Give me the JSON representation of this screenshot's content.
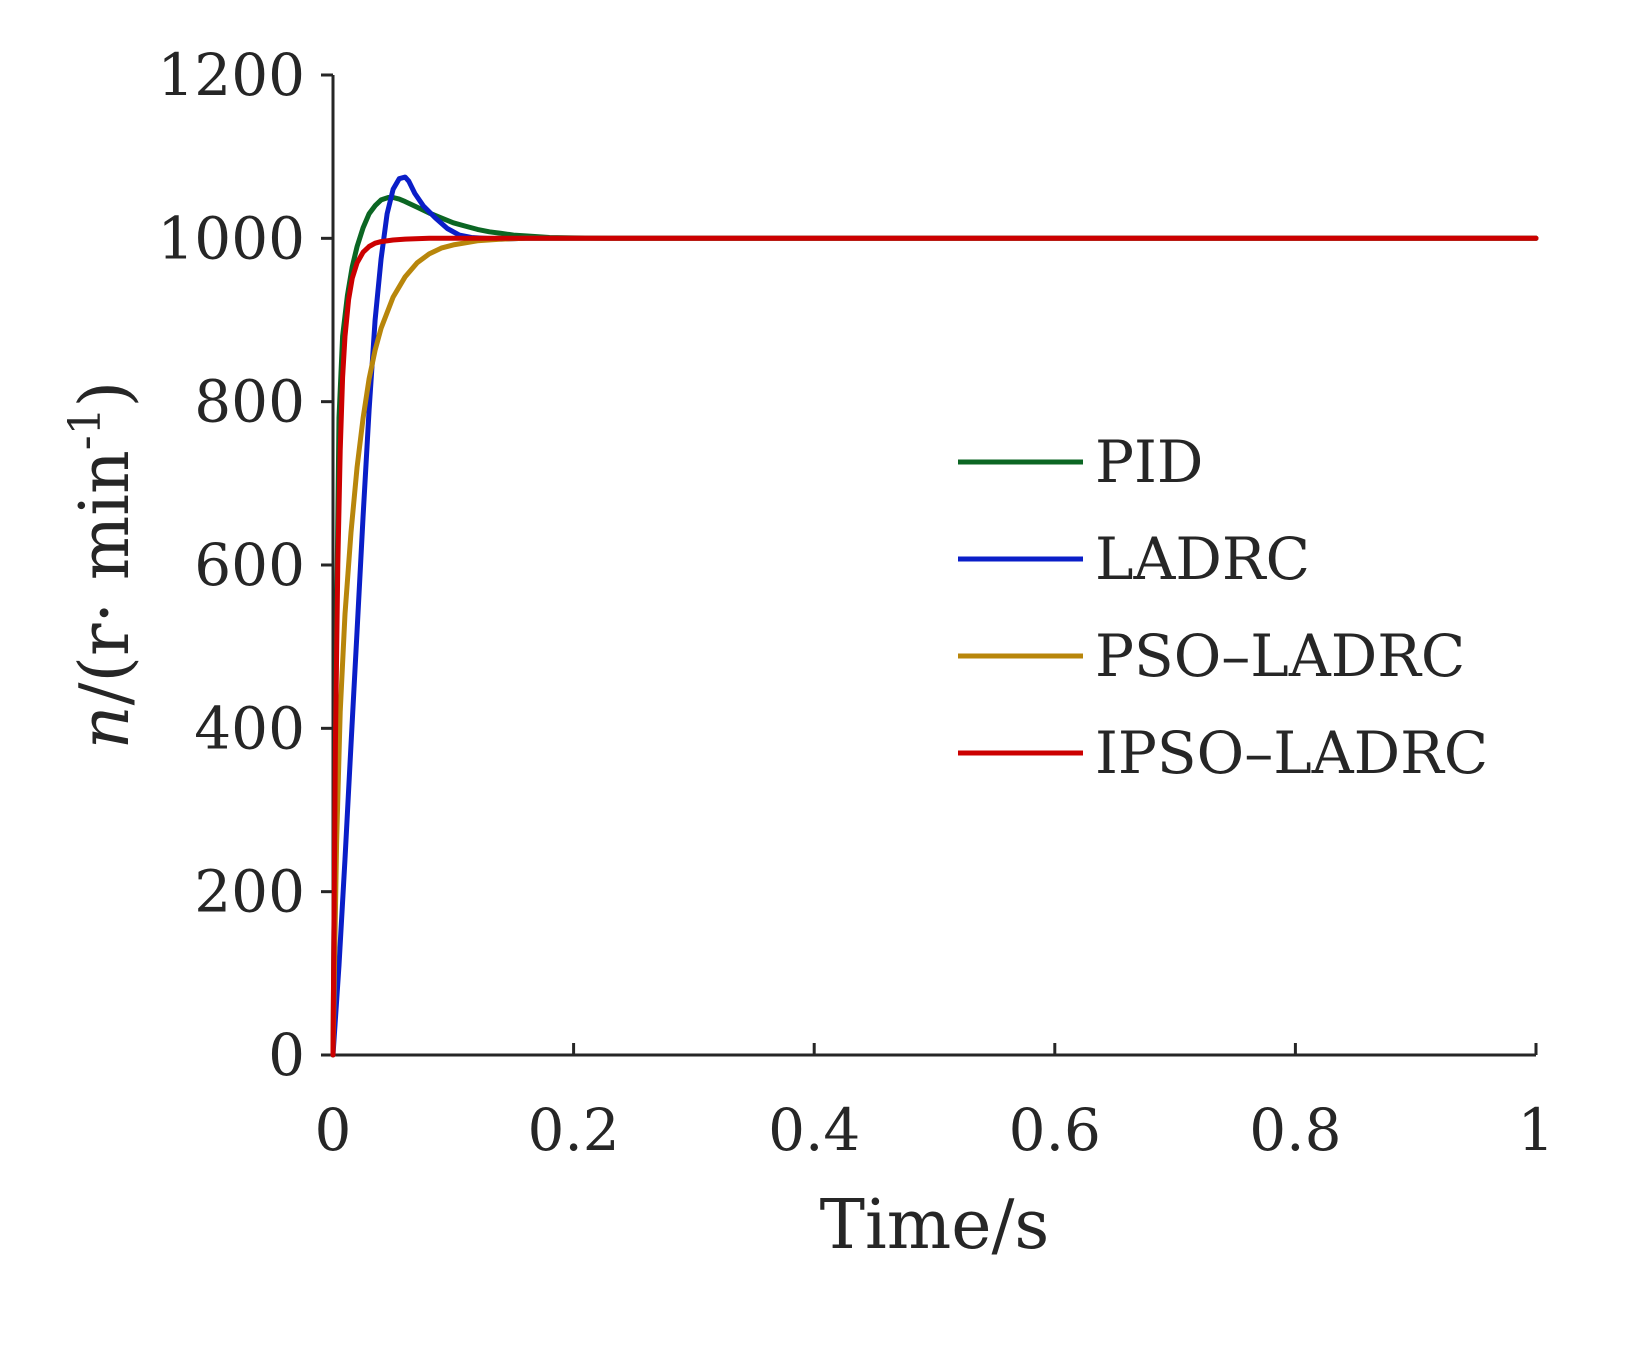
{
  "chart_data": {
    "type": "line",
    "title": "",
    "xlabel": "Time/s",
    "ylabel": {
      "n": "n",
      "rest": "/(r· min",
      "sup": "-1",
      "close": ")"
    },
    "xlim": [
      0,
      1
    ],
    "ylim": [
      0,
      1200
    ],
    "xticks": [
      0,
      0.2,
      0.4,
      0.6,
      0.8,
      1
    ],
    "xtick_labels": [
      "0",
      "0.2",
      "0.4",
      "0.6",
      "0.8",
      "1"
    ],
    "yticks": [
      0,
      200,
      400,
      600,
      800,
      1000,
      1200
    ],
    "ytick_labels": [
      "0",
      "200",
      "400",
      "600",
      "800",
      "1000",
      "1200"
    ],
    "grid": false,
    "legend_position": "right-middle",
    "series": [
      {
        "name": "PID",
        "color": "#0b6623",
        "x": [
          0,
          0.002,
          0.005,
          0.008,
          0.012,
          0.016,
          0.02,
          0.025,
          0.03,
          0.035,
          0.04,
          0.046,
          0.05,
          0.055,
          0.06,
          0.07,
          0.08,
          0.09,
          0.1,
          0.11,
          0.12,
          0.13,
          0.14,
          0.15,
          0.16,
          0.18,
          0.2,
          0.23,
          0.26,
          0.3,
          1.0
        ],
        "y": [
          0,
          400,
          780,
          880,
          930,
          965,
          990,
          1013,
          1030,
          1040,
          1047,
          1050,
          1050,
          1048,
          1045,
          1038,
          1031,
          1025,
          1019,
          1015,
          1011,
          1008,
          1006,
          1004,
          1003,
          1001,
          1000.5,
          1000.2,
          1000,
          1000,
          1000
        ]
      },
      {
        "name": "LADRC",
        "color": "#0a1ec8",
        "x": [
          0,
          0.005,
          0.01,
          0.015,
          0.02,
          0.025,
          0.03,
          0.035,
          0.04,
          0.045,
          0.05,
          0.055,
          0.06,
          0.063,
          0.068,
          0.075,
          0.085,
          0.095,
          0.105,
          0.115,
          0.125,
          0.14,
          0.16,
          0.2,
          1.0
        ],
        "y": [
          0,
          110,
          240,
          380,
          520,
          660,
          790,
          900,
          975,
          1030,
          1060,
          1073,
          1075,
          1070,
          1055,
          1040,
          1025,
          1012,
          1004,
          1001,
          1000,
          999,
          1000,
          1000,
          1000
        ]
      },
      {
        "name": "PSO–LADRC",
        "color": "#b8860b",
        "x": [
          0,
          0.003,
          0.006,
          0.01,
          0.015,
          0.02,
          0.025,
          0.03,
          0.035,
          0.04,
          0.05,
          0.06,
          0.07,
          0.08,
          0.09,
          0.1,
          0.12,
          0.14,
          0.16,
          0.2,
          1.0
        ],
        "y": [
          0,
          260,
          420,
          540,
          640,
          720,
          780,
          828,
          863,
          890,
          928,
          953,
          970,
          981,
          988,
          992,
          997,
          999,
          1000,
          1000,
          1000
        ]
      },
      {
        "name": "IPSO–LADRC",
        "color": "#cc0000",
        "x": [
          0,
          0.002,
          0.004,
          0.006,
          0.008,
          0.01,
          0.013,
          0.016,
          0.02,
          0.025,
          0.03,
          0.035,
          0.04,
          0.05,
          0.06,
          0.08,
          0.1,
          0.2,
          1.0
        ],
        "y": [
          0,
          380,
          600,
          740,
          830,
          880,
          925,
          951,
          970,
          983,
          990,
          994,
          996,
          998,
          999,
          1000,
          1000,
          1000,
          1000
        ]
      }
    ]
  }
}
